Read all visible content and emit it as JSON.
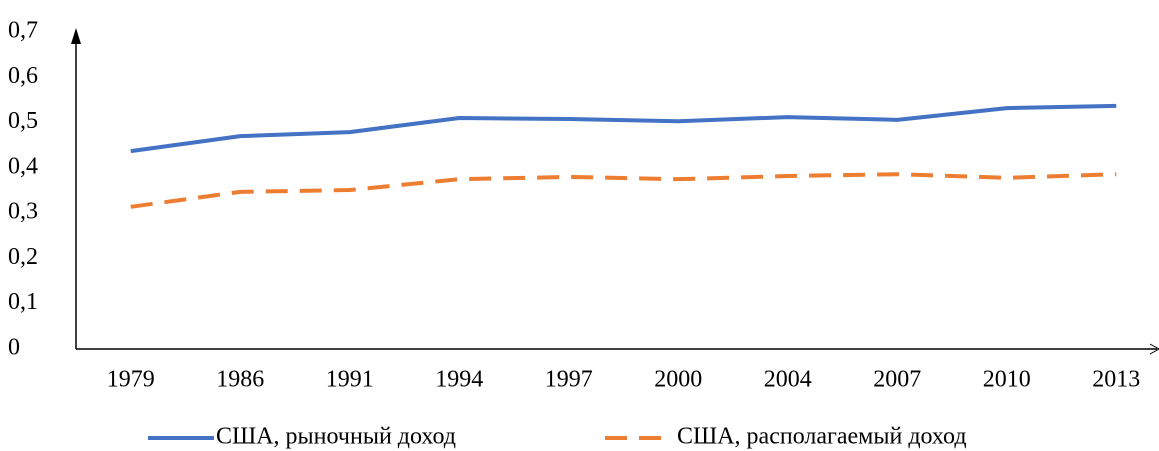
{
  "chart_data": {
    "type": "line",
    "categories": [
      "1979",
      "1986",
      "1991",
      "1994",
      "1997",
      "2000",
      "2004",
      "2007",
      "2010",
      "2013"
    ],
    "series": [
      {
        "name": "США, рыночный доход",
        "color": "#4472c4",
        "dash": false,
        "values": [
          0.437,
          0.47,
          0.479,
          0.51,
          0.508,
          0.503,
          0.512,
          0.506,
          0.532,
          0.537
        ]
      },
      {
        "name": "США, располагаемый доход",
        "color": "#ed7d31",
        "dash": true,
        "values": [
          0.314,
          0.347,
          0.351,
          0.375,
          0.38,
          0.375,
          0.382,
          0.386,
          0.378,
          0.386
        ]
      }
    ],
    "ylim": [
      0,
      0.7
    ],
    "yticks": [
      0,
      {
        "value": 0.1,
        "label": "0,1"
      },
      {
        "value": 0.2,
        "label": "0,2"
      },
      {
        "value": 0.3,
        "label": "0,3"
      },
      {
        "value": 0.4,
        "label": "0,4"
      },
      {
        "value": 0.5,
        "label": "0,5"
      },
      {
        "value": 0.6,
        "label": "0,6"
      },
      {
        "value": 0.7,
        "label": "0,7"
      }
    ],
    "grid": false,
    "legend": "bottom"
  }
}
